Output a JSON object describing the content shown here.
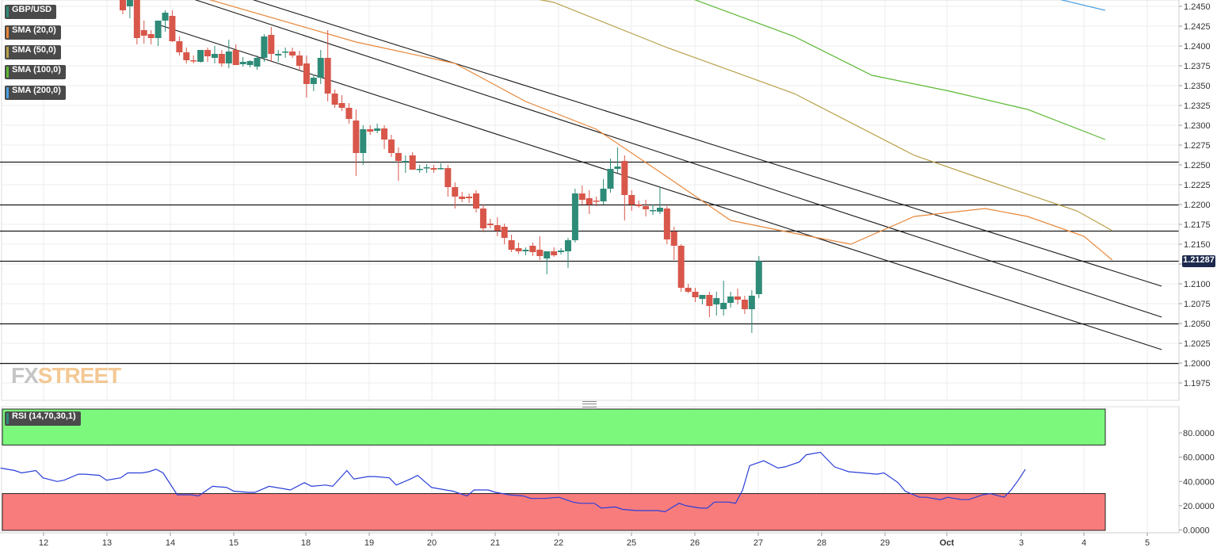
{
  "symbol": "GBP/USD",
  "overlays": [
    {
      "label": "SMA (20,0)",
      "color": "#e8873a"
    },
    {
      "label": "SMA (50,0)",
      "color": "#b8a048"
    },
    {
      "label": "SMA (100,0)",
      "color": "#5bb832"
    },
    {
      "label": "SMA (200,0)",
      "color": "#4a9fe0"
    }
  ],
  "rsi_label": "RSI (14,70,30,1)",
  "watermark": {
    "part1": "FX",
    "part2": "STREET"
  },
  "last_price": "1.21287",
  "colors": {
    "up": "#2e8b77",
    "down": "#d8574a",
    "rsi_line": "#2a3fd8",
    "overbought_zone": "#7cf97c",
    "oversold_zone": "#f97c7c",
    "badge": "#1d2a4d"
  },
  "chart_data": [
    {
      "type": "candlestick",
      "title": "GBP/USD",
      "x_tick_labels": [
        "12",
        "13",
        "14",
        "15",
        "18",
        "19",
        "20",
        "21",
        "22",
        "25",
        "26",
        "27",
        "28",
        "29",
        "Oct",
        "3",
        "4",
        "5"
      ],
      "y_tick_labels": [
        "1.2450",
        "1.2425",
        "1.2400",
        "1.2375",
        "1.2350",
        "1.2325",
        "1.2300",
        "1.2275",
        "1.2250",
        "1.2225",
        "1.2200",
        "1.2175",
        "1.2150",
        "1.2125",
        "1.2100",
        "1.2075",
        "1.2050",
        "1.2025",
        "1.2000",
        "1.1975"
      ],
      "ylim": [
        1.1965,
        1.2455
      ],
      "horizontal_levels": [
        1.2254,
        1.22,
        1.2167,
        1.21287,
        1.205,
        1.2
      ],
      "last_price": 1.21287,
      "candles_ohlc": [
        [
          1.2465,
          1.2468,
          1.244,
          1.2445
        ],
        [
          1.245,
          1.2468,
          1.2435,
          1.2462
        ],
        [
          1.246,
          1.2465,
          1.2402,
          1.241
        ],
        [
          1.242,
          1.2432,
          1.2403,
          1.2413
        ],
        [
          1.2415,
          1.242,
          1.2402,
          1.241
        ],
        [
          1.241,
          1.243,
          1.24,
          1.2432
        ],
        [
          1.2432,
          1.2445,
          1.2418,
          1.2442
        ],
        [
          1.2438,
          1.2445,
          1.2405,
          1.2406
        ],
        [
          1.2406,
          1.2412,
          1.2388,
          1.2392
        ],
        [
          1.2392,
          1.2398,
          1.2378,
          1.2382
        ],
        [
          1.2382,
          1.2388,
          1.2378,
          1.2381
        ],
        [
          1.238,
          1.2392,
          1.2379,
          1.2395
        ],
        [
          1.2395,
          1.2398,
          1.238,
          1.2387
        ],
        [
          1.2385,
          1.24,
          1.2378,
          1.239
        ],
        [
          1.239,
          1.2395,
          1.2374,
          1.2378
        ],
        [
          1.2378,
          1.2408,
          1.2372,
          1.2393
        ],
        [
          1.2395,
          1.2402,
          1.2376,
          1.2376
        ],
        [
          1.2377,
          1.2386,
          1.2374,
          1.238
        ],
        [
          1.2376,
          1.2382,
          1.2373,
          1.2381
        ],
        [
          1.2374,
          1.2388,
          1.237,
          1.2385
        ],
        [
          1.2385,
          1.2415,
          1.238,
          1.2412
        ],
        [
          1.2414,
          1.2424,
          1.238,
          1.239
        ],
        [
          1.2388,
          1.2395,
          1.238,
          1.239
        ],
        [
          1.2392,
          1.2398,
          1.2385,
          1.2393
        ],
        [
          1.2393,
          1.2398,
          1.2385,
          1.2388
        ],
        [
          1.2388,
          1.2394,
          1.237,
          1.2375
        ],
        [
          1.2378,
          1.2388,
          1.2335,
          1.2352
        ],
        [
          1.2352,
          1.2364,
          1.2343,
          1.236
        ],
        [
          1.236,
          1.2395,
          1.2352,
          1.2385
        ],
        [
          1.2385,
          1.242,
          1.233,
          1.234
        ],
        [
          1.234,
          1.2345,
          1.2322,
          1.2326
        ],
        [
          1.2328,
          1.2338,
          1.2318,
          1.2322
        ],
        [
          1.2322,
          1.2328,
          1.2302,
          1.2308
        ],
        [
          1.2306,
          1.232,
          1.2236,
          1.2265
        ],
        [
          1.2265,
          1.23,
          1.225,
          1.2295
        ],
        [
          1.2295,
          1.23,
          1.2288,
          1.2292
        ],
        [
          1.2293,
          1.2302,
          1.229,
          1.2296
        ],
        [
          1.2296,
          1.23,
          1.227,
          1.2282
        ],
        [
          1.2282,
          1.2288,
          1.226,
          1.2265
        ],
        [
          1.2265,
          1.2272,
          1.223,
          1.2255
        ],
        [
          1.2255,
          1.2262,
          1.224,
          1.2255
        ],
        [
          1.2262,
          1.2266,
          1.2244,
          1.2244
        ],
        [
          1.2244,
          1.225,
          1.224,
          1.2245
        ],
        [
          1.2246,
          1.2251,
          1.224,
          1.2247
        ],
        [
          1.2246,
          1.225,
          1.224,
          1.2244
        ],
        [
          1.2246,
          1.2252,
          1.2244,
          1.2246
        ],
        [
          1.2246,
          1.225,
          1.221,
          1.2222
        ],
        [
          1.2222,
          1.2228,
          1.2195,
          1.221
        ],
        [
          1.221,
          1.2216,
          1.2203,
          1.2207
        ],
        [
          1.221,
          1.2214,
          1.2202,
          1.2208
        ],
        [
          1.2214,
          1.2218,
          1.219,
          1.2195
        ],
        [
          1.2195,
          1.22,
          1.2165,
          1.217
        ],
        [
          1.2176,
          1.2182,
          1.217,
          1.2174
        ],
        [
          1.2174,
          1.2184,
          1.216,
          1.2167
        ],
        [
          1.2172,
          1.2176,
          1.215,
          1.2158
        ],
        [
          1.2155,
          1.2162,
          1.214,
          1.2143
        ],
        [
          1.2145,
          1.2152,
          1.2138,
          1.2141
        ],
        [
          1.2141,
          1.2146,
          1.2136,
          1.2143
        ],
        [
          1.2148,
          1.2152,
          1.2135,
          1.214
        ],
        [
          1.2143,
          1.216,
          1.213,
          1.2135
        ],
        [
          1.2132,
          1.214,
          1.2112,
          1.2141
        ],
        [
          1.2141,
          1.2146,
          1.2134,
          1.2136
        ],
        [
          1.214,
          1.2145,
          1.2137,
          1.2142
        ],
        [
          1.2141,
          1.2158,
          1.212,
          1.2155
        ],
        [
          1.2155,
          1.222,
          1.2152,
          1.2214
        ],
        [
          1.2214,
          1.2224,
          1.22,
          1.2206
        ],
        [
          1.2208,
          1.2218,
          1.2188,
          1.22
        ],
        [
          1.2205,
          1.221,
          1.2198,
          1.2204
        ],
        [
          1.2204,
          1.2232,
          1.22,
          1.222
        ],
        [
          1.222,
          1.2258,
          1.2215,
          1.2245
        ],
        [
          1.2245,
          1.2272,
          1.224,
          1.2248
        ],
        [
          1.2255,
          1.2262,
          1.218,
          1.2212
        ],
        [
          1.2212,
          1.2218,
          1.2192,
          1.22
        ],
        [
          1.22,
          1.2205,
          1.2196,
          1.2198
        ],
        [
          1.2198,
          1.2206,
          1.2185,
          1.2194
        ],
        [
          1.2193,
          1.22,
          1.2187,
          1.2193
        ],
        [
          1.2191,
          1.2222,
          1.2188,
          1.2196
        ],
        [
          1.2195,
          1.2198,
          1.215,
          1.2156
        ],
        [
          1.2166,
          1.2172,
          1.213,
          1.2148
        ],
        [
          1.2148,
          1.215,
          1.209,
          1.2095
        ],
        [
          1.2095,
          1.21,
          1.2088,
          1.209
        ],
        [
          1.209,
          1.2095,
          1.2077,
          1.2083
        ],
        [
          1.2081,
          1.2085,
          1.2074,
          1.2086
        ],
        [
          1.2086,
          1.209,
          1.2058,
          1.2072
        ],
        [
          1.2074,
          1.209,
          1.206,
          1.2082
        ],
        [
          1.2068,
          1.2104,
          1.206,
          1.2076
        ],
        [
          1.2076,
          1.209,
          1.207,
          1.2084
        ],
        [
          1.2084,
          1.2094,
          1.2074,
          1.208
        ],
        [
          1.208,
          1.2085,
          1.2062,
          1.2068
        ],
        [
          1.2068,
          1.2092,
          1.2038,
          1.2085
        ],
        [
          1.2087,
          1.2135,
          1.2082,
          1.21287
        ]
      ],
      "sma_20": [
        [
          0,
          1.249
        ],
        [
          33,
          1.2405
        ],
        [
          47,
          1.2378
        ],
        [
          57,
          1.233
        ],
        [
          67,
          1.2295
        ],
        [
          77,
          1.2235
        ],
        [
          86,
          1.218
        ],
        [
          96,
          1.2162
        ],
        [
          103,
          1.215
        ],
        [
          112,
          1.2185
        ],
        [
          122,
          1.2195
        ],
        [
          128,
          1.2185
        ],
        [
          136,
          1.216
        ],
        [
          140,
          1.213
        ]
      ],
      "sma_50": [
        [
          45,
          1.2482
        ],
        [
          61,
          1.2455
        ],
        [
          77,
          1.2398
        ],
        [
          95,
          1.234
        ],
        [
          112,
          1.2262
        ],
        [
          123,
          1.2228
        ],
        [
          135,
          1.2192
        ],
        [
          140,
          1.2167
        ]
      ],
      "sma_100": [
        [
          78,
          1.2468
        ],
        [
          95,
          1.2412
        ],
        [
          106,
          1.2363
        ],
        [
          117,
          1.2343
        ],
        [
          128,
          1.232
        ],
        [
          139,
          1.2282
        ]
      ],
      "sma_200": [
        [
          131,
          1.2462
        ],
        [
          139,
          1.2445
        ]
      ],
      "channel_lines": [
        [
          [
            10,
            1.2482
          ],
          [
            147,
            1.2097
          ]
        ],
        [
          [
            10,
            1.2459
          ],
          [
            147,
            1.2058
          ]
        ],
        [
          [
            5,
            1.2427
          ],
          [
            147,
            1.2017
          ]
        ]
      ]
    },
    {
      "type": "line",
      "title": "RSI (14,70,30,1)",
      "y_tick_labels": [
        "80.0000",
        "60.0000",
        "40.0000",
        "20.0000",
        "0.0000"
      ],
      "ylim": [
        0,
        100
      ],
      "overbought": 70,
      "oversold": 30,
      "values": [
        [
          0,
          51
        ],
        [
          2,
          49
        ],
        [
          3,
          47
        ],
        [
          5,
          49
        ],
        [
          6,
          43
        ],
        [
          8,
          40
        ],
        [
          9,
          41
        ],
        [
          11,
          46
        ],
        [
          12,
          46
        ],
        [
          14,
          45
        ],
        [
          15,
          41
        ],
        [
          17,
          43
        ],
        [
          18,
          47
        ],
        [
          20,
          47
        ],
        [
          21,
          48
        ],
        [
          22,
          50
        ],
        [
          23,
          47
        ],
        [
          25,
          29
        ],
        [
          27,
          29
        ],
        [
          28,
          28
        ],
        [
          30,
          36
        ],
        [
          32,
          35
        ],
        [
          33,
          32
        ],
        [
          35,
          31
        ],
        [
          36,
          31
        ],
        [
          38,
          36
        ],
        [
          40,
          34
        ],
        [
          41,
          33
        ],
        [
          43,
          39
        ],
        [
          44,
          36
        ],
        [
          46,
          37
        ],
        [
          47,
          36
        ],
        [
          49,
          49
        ],
        [
          50,
          42
        ],
        [
          52,
          44
        ],
        [
          53,
          44
        ],
        [
          55,
          43
        ],
        [
          56,
          37
        ],
        [
          58,
          42
        ],
        [
          59,
          45
        ],
        [
          61,
          35
        ],
        [
          63,
          33
        ],
        [
          64,
          32
        ],
        [
          66,
          28
        ],
        [
          67,
          33
        ],
        [
          69,
          33
        ],
        [
          70,
          31
        ],
        [
          72,
          29
        ],
        [
          74,
          28
        ],
        [
          75,
          26
        ],
        [
          77,
          26
        ],
        [
          79,
          27
        ],
        [
          81,
          23
        ],
        [
          82,
          22
        ],
        [
          84,
          22
        ],
        [
          85,
          18
        ],
        [
          87,
          19
        ],
        [
          88,
          17
        ],
        [
          90,
          16
        ],
        [
          91,
          16
        ],
        [
          93,
          16
        ],
        [
          94,
          15
        ],
        [
          96,
          22
        ],
        [
          97,
          20
        ],
        [
          99,
          18
        ],
        [
          100,
          18
        ],
        [
          101,
          23
        ],
        [
          103,
          23
        ],
        [
          104,
          22
        ],
        [
          105,
          33
        ],
        [
          106,
          53
        ],
        [
          108,
          57
        ],
        [
          110,
          51
        ],
        [
          111,
          52
        ],
        [
          113,
          56
        ],
        [
          114,
          62
        ],
        [
          116,
          64
        ],
        [
          118,
          52
        ],
        [
          119,
          50
        ],
        [
          120,
          48
        ],
        [
          122,
          47
        ],
        [
          124,
          46
        ],
        [
          125,
          47
        ],
        [
          127,
          39
        ],
        [
          128,
          32
        ],
        [
          130,
          27
        ],
        [
          131,
          27
        ],
        [
          133,
          25
        ],
        [
          134,
          27
        ],
        [
          136,
          25
        ],
        [
          137,
          25
        ],
        [
          139,
          29
        ],
        [
          140,
          30
        ],
        [
          142,
          27
        ],
        [
          143,
          33
        ],
        [
          144,
          41
        ],
        [
          145,
          50
        ]
      ]
    }
  ]
}
